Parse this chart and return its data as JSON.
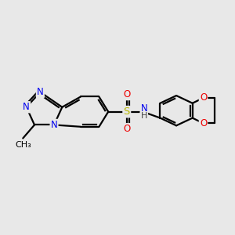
{
  "bg_color": "#e8e8e8",
  "bond_color": "#000000",
  "bond_width": 1.6,
  "atom_colors": {
    "N": "#0000ee",
    "S": "#b8b800",
    "O": "#ee0000",
    "C": "#000000",
    "H": "#404040"
  },
  "font_size": 8.5,
  "fig_width": 3.0,
  "fig_height": 3.0,
  "dpi": 100
}
